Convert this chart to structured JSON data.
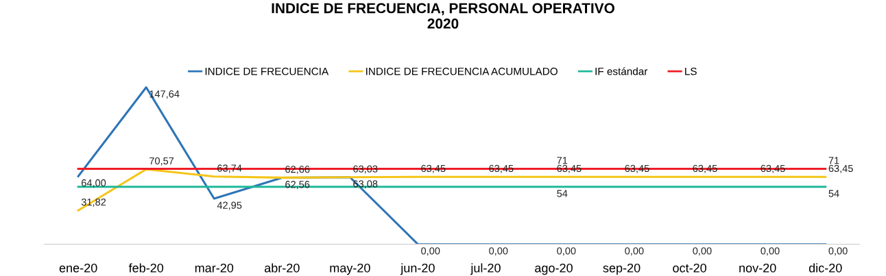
{
  "chart_data": {
    "type": "line",
    "title": "INDICE DE FRECUENCIA, PERSONAL OPERATIVO\n2020",
    "categories": [
      "ene-20",
      "feb-20",
      "mar-20",
      "abr-20",
      "may-20",
      "jun-20",
      "jul-20",
      "ago-20",
      "sep-20",
      "oct-20",
      "nov-20",
      "dic-20"
    ],
    "series": [
      {
        "name": "INDICE DE FRECUENCIA",
        "color": "#2e75b6",
        "values": [
          64.0,
          147.64,
          42.95,
          62.56,
          63.08,
          0,
          0,
          0,
          0,
          0,
          0,
          0
        ],
        "value_labels": [
          "64,00",
          "147,64",
          "42,95",
          "62,56",
          "63,08",
          "0,00",
          "0,00",
          "0,00",
          "0,00",
          "0,00",
          "0,00",
          "0,00"
        ]
      },
      {
        "name": "INDICE DE FRECUENCIA ACUMULADO",
        "color": "#f5c518",
        "values": [
          31.82,
          70.57,
          63.74,
          62.66,
          63.03,
          63.45,
          63.45,
          63.45,
          63.45,
          63.45,
          63.45,
          63.45
        ],
        "value_labels": [
          "31,82",
          "70,57",
          "63,74",
          "62,66",
          "63,03",
          "63,45",
          "63,45",
          "63,45",
          "63,45",
          "63,45",
          "63,45",
          "63,45"
        ]
      },
      {
        "name": "IF estándar",
        "color": "#1fb89a",
        "values": [
          54,
          54,
          54,
          54,
          54,
          54,
          54,
          54,
          54,
          54,
          54,
          54
        ],
        "value_labels": [
          null,
          null,
          null,
          null,
          null,
          null,
          null,
          "54",
          null,
          null,
          null,
          "54"
        ]
      },
      {
        "name": "LS",
        "color": "#ee1c25",
        "values": [
          71,
          71,
          71,
          71,
          71,
          71,
          71,
          71,
          71,
          71,
          71,
          71
        ],
        "value_labels": [
          null,
          null,
          null,
          null,
          null,
          null,
          null,
          "71",
          null,
          null,
          null,
          "71"
        ]
      }
    ],
    "legend": "top",
    "grid": false,
    "marker": "none",
    "line_style": "solid"
  }
}
